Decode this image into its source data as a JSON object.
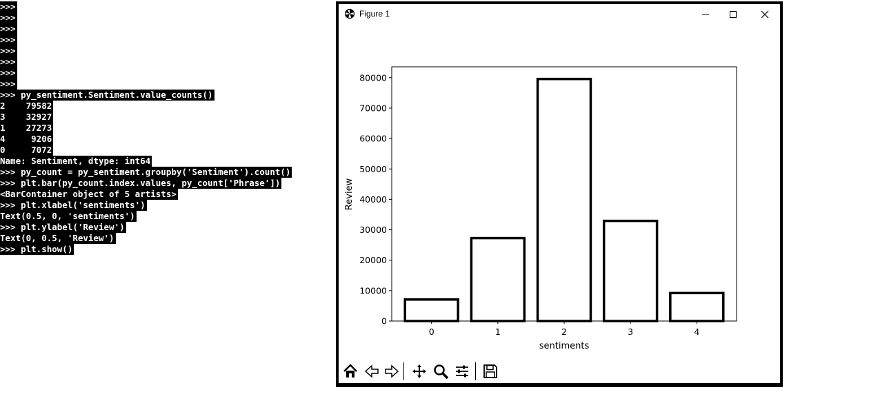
{
  "terminal": {
    "lines": [
      ">>>",
      ">>>",
      ">>>",
      ">>>",
      ">>>",
      ">>>",
      ">>>",
      ">>>",
      ">>> py_sentiment.Sentiment.value_counts()",
      "2    79582",
      "3    32927",
      "1    27273",
      "4     9206",
      "0     7072",
      "Name: Sentiment, dtype: int64",
      ">>> py_count = py_sentiment.groupby('Sentiment').count()",
      ">>> plt.bar(py_count.index.values, py_count['Phrase'])",
      "<BarContainer object of 5 artists>",
      ">>> plt.xlabel('sentiments')",
      "Text(0.5, 0, 'sentiments')",
      ">>> plt.ylabel('Review')",
      "Text(0, 0.5, 'Review')",
      ">>> plt.show()"
    ]
  },
  "window": {
    "title": "Figure 1",
    "minimize_icon": "minimize-icon",
    "maximize_icon": "maximize-icon",
    "close_icon": "close-icon"
  },
  "toolbar": {
    "buttons": [
      "home-icon",
      "back-arrow-icon",
      "forward-arrow-icon",
      "pan-icon",
      "zoom-icon",
      "configure-subplots-icon",
      "save-icon"
    ]
  },
  "chart_data": {
    "type": "bar",
    "categories": [
      "0",
      "1",
      "2",
      "3",
      "4"
    ],
    "values": [
      7072,
      27273,
      79582,
      32927,
      9206
    ],
    "title": "",
    "xlabel": "sentiments",
    "ylabel": "Review",
    "ylim": [
      0,
      83580
    ],
    "yticks": [
      0,
      10000,
      20000,
      30000,
      40000,
      50000,
      60000,
      70000,
      80000
    ],
    "xticks": [
      "0",
      "1",
      "2",
      "3",
      "4"
    ],
    "grid": false,
    "bar_fill": "#ffffff",
    "bar_edge": "#000000"
  }
}
